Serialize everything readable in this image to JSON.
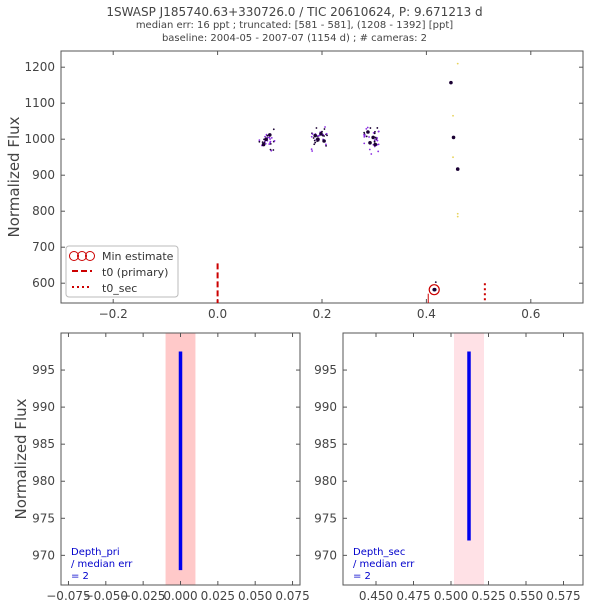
{
  "header": {
    "title": "1SWASP J185740.63+330726.0 / TIC 20610624, P: 9.671213 d",
    "line2": "median err: 16 ppt ; truncated: [581 - 581], (1208 - 1392] [ppt]",
    "line3": "baseline: 2004-05 - 2007-07 (1154 d)  ;  # cameras: 2"
  },
  "colors": {
    "axis": "#555555",
    "primary": "#cc0000",
    "fold_dark": "#1a0033",
    "fold_purple": "#8a2be2",
    "fold_yellow": "#e8d35a",
    "depth_line": "#0000ee",
    "span_primary": "#ffc9c9",
    "span_secondary": "#ffe1e6",
    "annotation": "#0000cc"
  },
  "chart_data": [
    {
      "type": "scatter",
      "ylabel": "Normalized Flux",
      "xlim": [
        -0.3,
        0.7
      ],
      "ylim": [
        545,
        1245
      ],
      "xticks": [
        -0.2,
        0.0,
        0.2,
        0.4,
        0.6
      ],
      "xtick_labels": [
        "−0.2",
        "0.0",
        "0.2",
        "0.4",
        "0.6"
      ],
      "yticks": [
        600,
        700,
        800,
        900,
        1000,
        1100,
        1200
      ],
      "legend": {
        "position": "lower-left",
        "entries": [
          "Min estimate",
          "t0 (primary)",
          "t0_sec"
        ]
      },
      "clusters": [
        {
          "center": 0.095,
          "mean": 995,
          "spread": 20,
          "n": 28
        },
        {
          "center": 0.195,
          "mean": 1000,
          "spread": 20,
          "n": 32
        },
        {
          "center": 0.295,
          "mean": 1000,
          "spread": 25,
          "n": 36
        }
      ],
      "binned_points": [
        {
          "x": 0.088,
          "y": 985
        },
        {
          "x": 0.093,
          "y": 1000
        },
        {
          "x": 0.1,
          "y": 1012
        },
        {
          "x": 0.187,
          "y": 1010
        },
        {
          "x": 0.192,
          "y": 1000
        },
        {
          "x": 0.198,
          "y": 1015
        },
        {
          "x": 0.204,
          "y": 995
        },
        {
          "x": 0.288,
          "y": 1020
        },
        {
          "x": 0.292,
          "y": 990
        },
        {
          "x": 0.298,
          "y": 1005
        },
        {
          "x": 0.302,
          "y": 985
        },
        {
          "x": 0.447,
          "y": 1157
        },
        {
          "x": 0.452,
          "y": 1005
        },
        {
          "x": 0.46,
          "y": 917
        },
        {
          "x": 0.416,
          "y": 582
        }
      ],
      "sparse_points": [
        {
          "x": 0.46,
          "y": 1210
        },
        {
          "x": 0.451,
          "y": 1065
        },
        {
          "x": 0.451,
          "y": 950
        },
        {
          "x": 0.46,
          "y": 793
        },
        {
          "x": 0.46,
          "y": 785
        },
        {
          "x": 0.418,
          "y": 603
        }
      ],
      "min_estimate": {
        "x": 0.415,
        "y": 582
      },
      "t0_primary": 0.0,
      "t0_secondary": 0.512,
      "marker_line_top": 655
    },
    {
      "type": "scatter",
      "xlim": [
        -0.08,
        0.08
      ],
      "ylim": [
        966,
        1000
      ],
      "xticks": [
        -0.075,
        -0.05,
        -0.025,
        0.0,
        0.025,
        0.05,
        0.075
      ],
      "xtick_labels": [
        "−0.075",
        "−0.050",
        "−0.025",
        "0.000",
        "0.025",
        "0.050",
        "0.075"
      ],
      "yticks": [
        970,
        975,
        980,
        985,
        990,
        995
      ],
      "ylabel": "Normalized Flux",
      "span": [
        -0.01,
        0.01
      ],
      "depth_line": {
        "x": 0.0,
        "y_low": 968,
        "y_high": 997.5
      },
      "annotation": [
        "Depth_pri",
        " / median err",
        " = 2"
      ]
    },
    {
      "type": "scatter",
      "xlim": [
        0.428,
        0.588
      ],
      "ylim": [
        966,
        1000
      ],
      "xticks": [
        0.45,
        0.475,
        0.5,
        0.525,
        0.55,
        0.575
      ],
      "xtick_labels": [
        "0.450",
        "0.475",
        "0.500",
        "0.525",
        "0.550",
        "0.575"
      ],
      "yticks": [
        970,
        975,
        980,
        985,
        990,
        995
      ],
      "span": [
        0.502,
        0.522
      ],
      "depth_line": {
        "x": 0.512,
        "y_low": 972,
        "y_high": 997.5
      },
      "annotation": [
        "Depth_sec",
        " / median err",
        " = 2"
      ]
    }
  ]
}
